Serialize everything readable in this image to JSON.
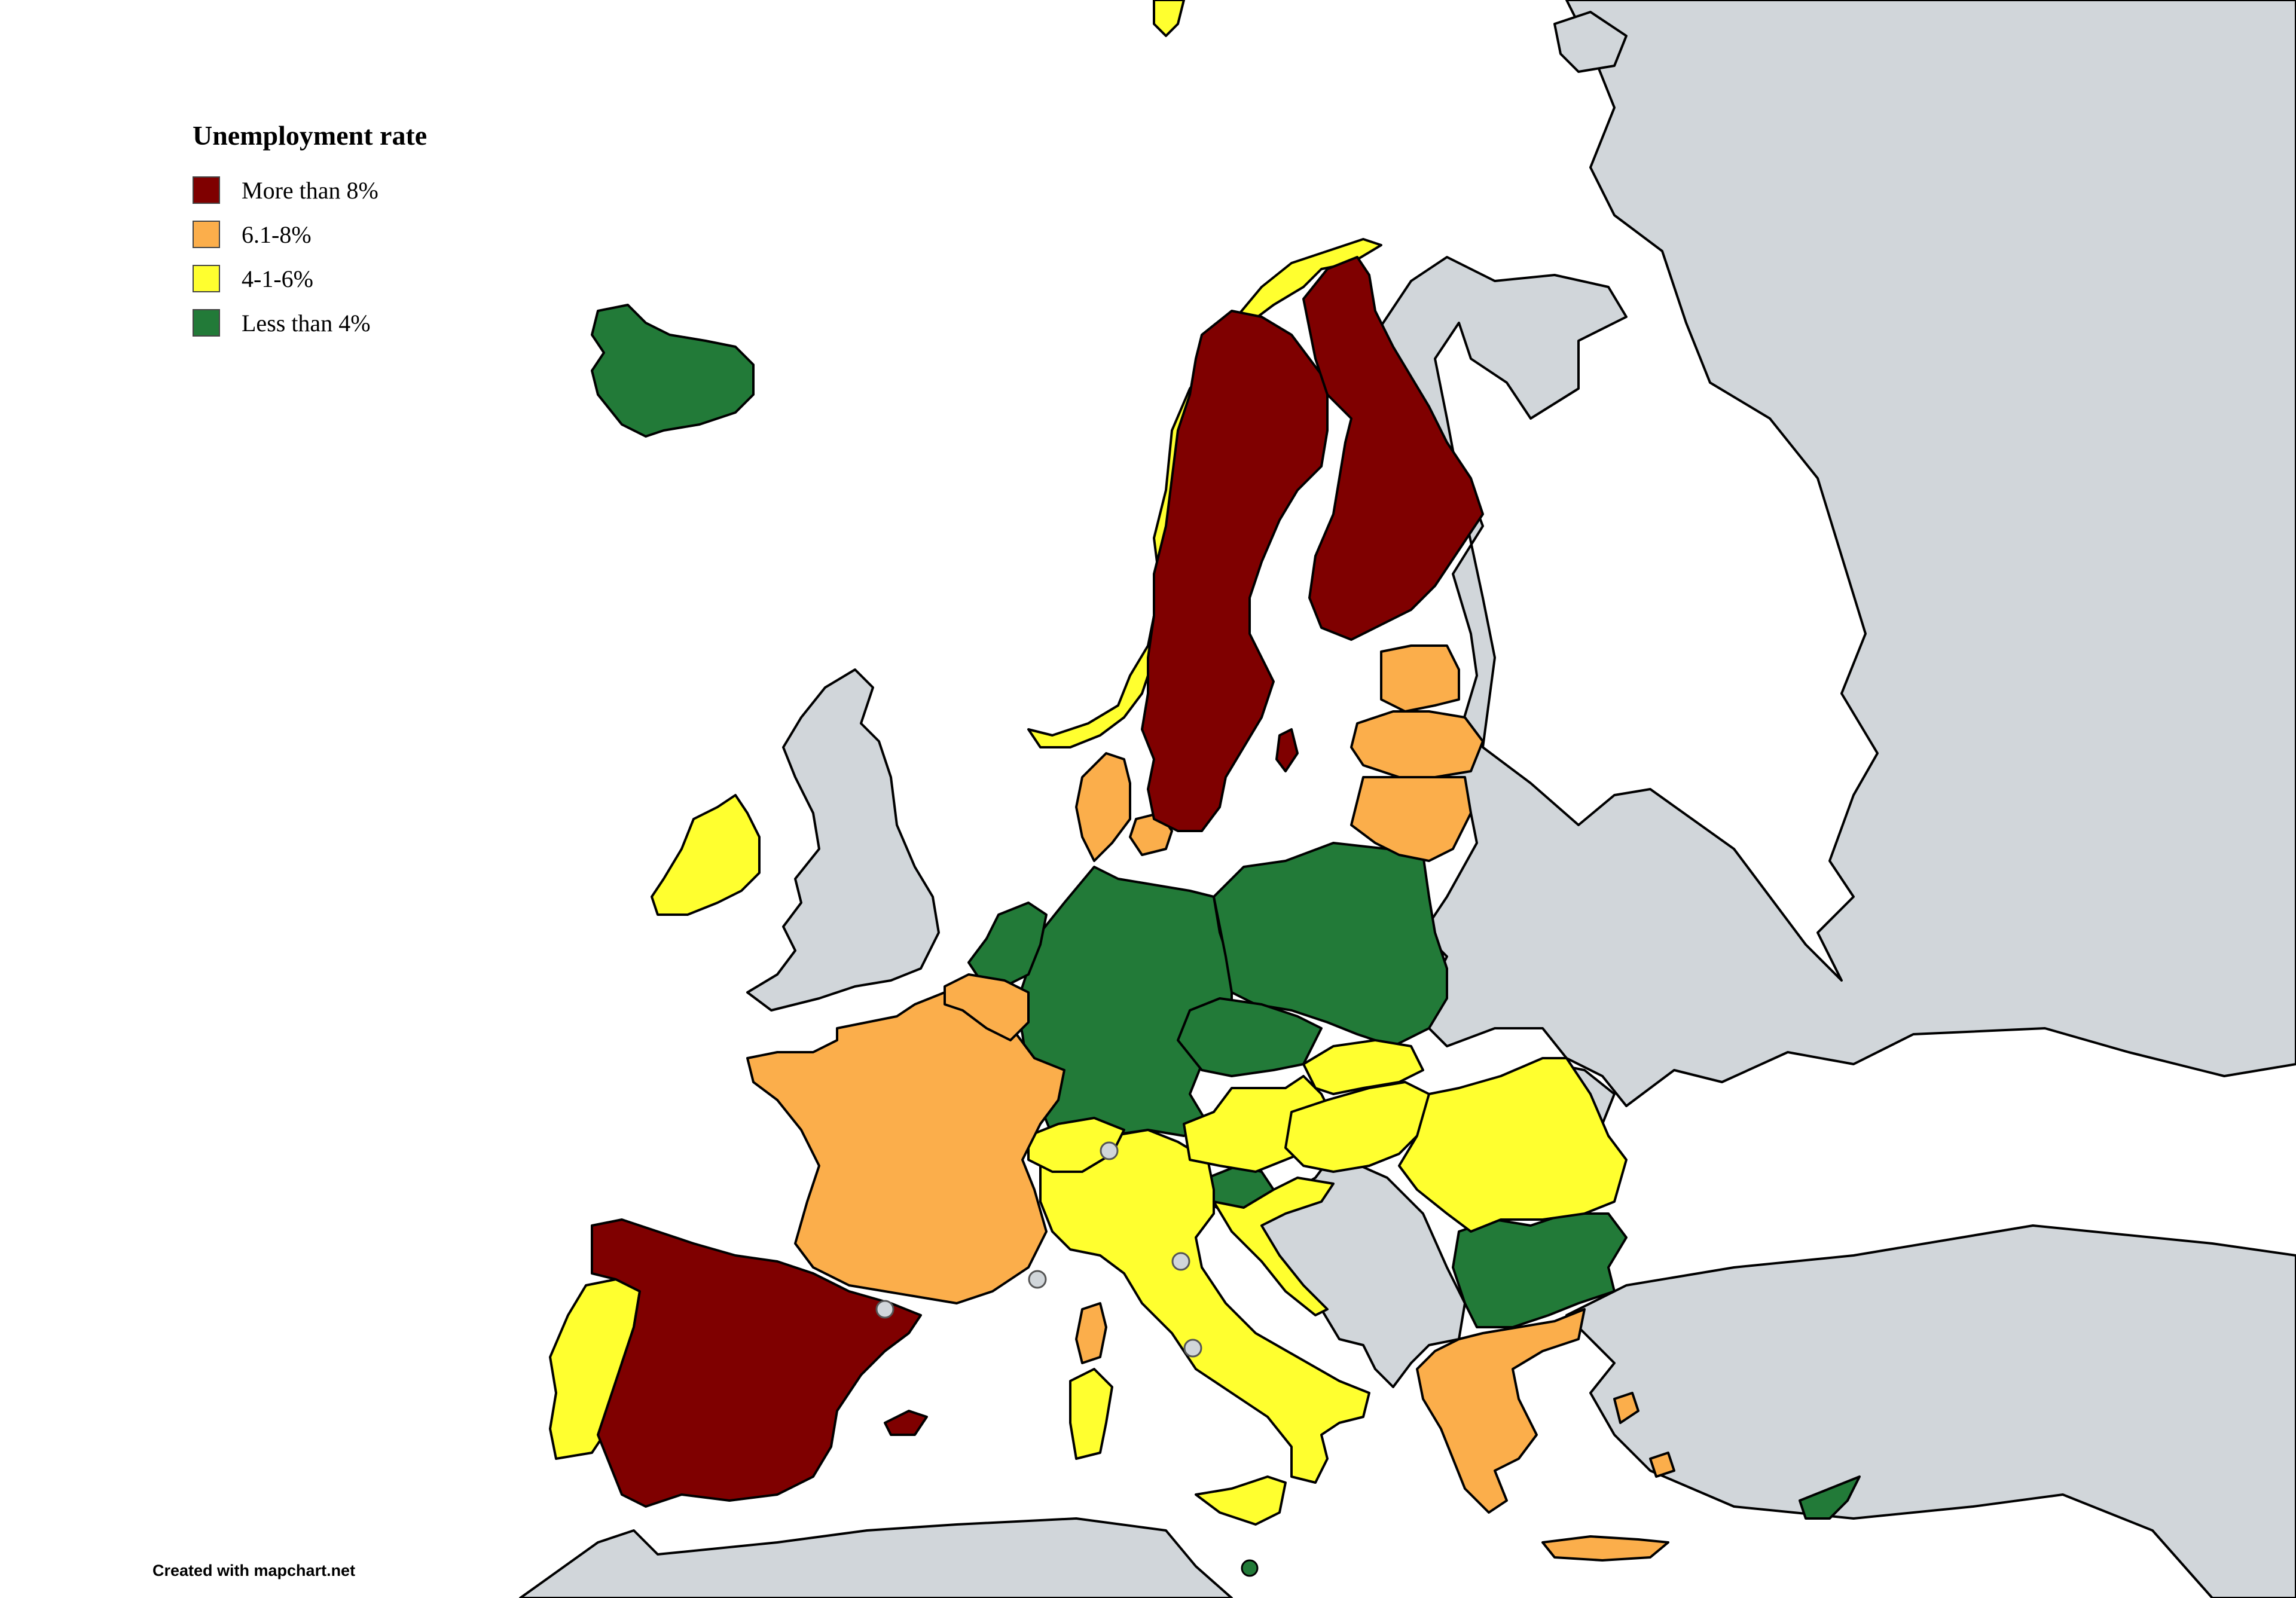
{
  "legend": {
    "title": "Unemployment rate",
    "items": [
      {
        "label": "More than 8%",
        "color": "#7f0000"
      },
      {
        "label": "6.1-8%",
        "color": "#fbae4b"
      },
      {
        "label": "4-1-6%",
        "color": "#ffff2f"
      },
      {
        "label": "Less than 4%",
        "color": "#227a38"
      }
    ]
  },
  "credit": "Created with mapchart.net",
  "colors": {
    "non_member": "#d1d6da",
    "sea": "#ffffff",
    "border": "#000000"
  },
  "countries": {
    "more_than_8": [
      "Spain",
      "Sweden",
      "Finland"
    ],
    "6_1_to_8": [
      "France",
      "Denmark",
      "Estonia",
      "Latvia",
      "Lithuania",
      "Greece",
      "Belgium",
      "Luxembourg"
    ],
    "4_1_to_6": [
      "Ireland",
      "Portugal",
      "Norway",
      "Italy",
      "Austria",
      "Hungary",
      "Slovakia",
      "Romania",
      "Croatia",
      "Switzerland"
    ],
    "less_than_4": [
      "Iceland",
      "Germany",
      "Poland",
      "Czechia",
      "Netherlands",
      "Slovenia",
      "Bulgaria",
      "Malta",
      "Cyprus"
    ]
  }
}
